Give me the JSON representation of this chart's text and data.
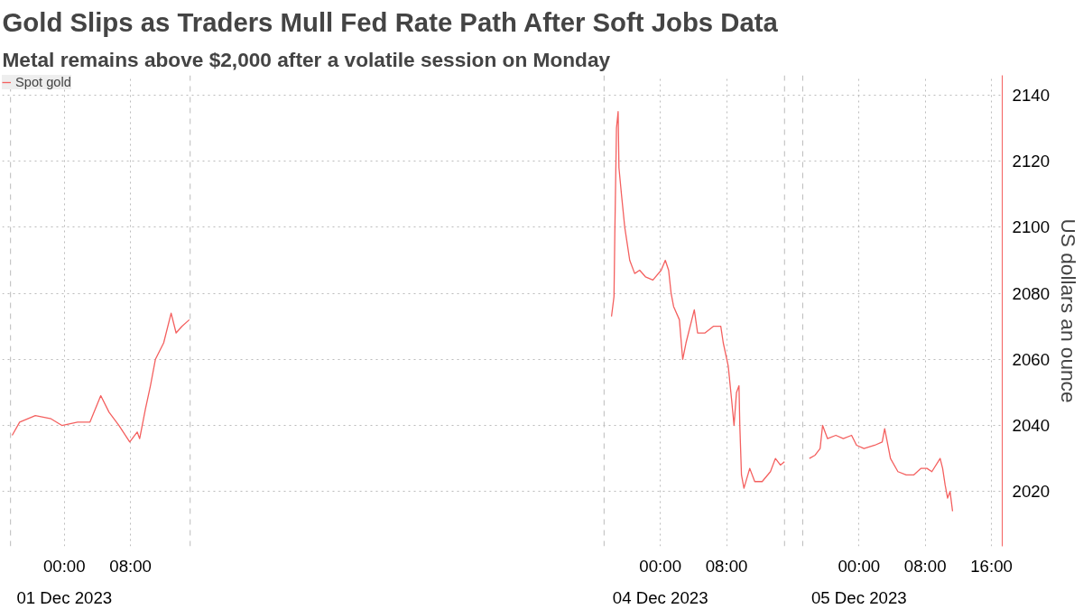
{
  "chart_data": {
    "type": "line",
    "title": "Gold Slips as Traders Mull Fed Rate Path After Soft Jobs Data",
    "subtitle": "Metal remains above $2,000 after a volatile session on Monday",
    "ylabel": "US dollars an ounce",
    "x": [
      "2023-11-30T17:42",
      "2023-11-30T18:36",
      "2023-11-30T20:30",
      "2023-11-30T22:24",
      "2023-11-30T23:42",
      "2023-12-01T01:36",
      "2023-12-01T03:06",
      "2023-12-01T04:24",
      "2023-12-01T05:24",
      "2023-12-01T06:36",
      "2023-12-01T07:54",
      "2023-12-01T08:48",
      "2023-12-01T09:06",
      "2023-12-01T09:48",
      "2023-12-01T10:24",
      "2023-12-01T11:00",
      "2023-12-01T12:00",
      "2023-12-01T12:54",
      "2023-12-01T13:30",
      "2023-12-01T14:12",
      "2023-12-01T15:06",
      "2023-12-02T16:00",
      "2023-12-03T18:06",
      "2023-12-03T18:24",
      "2023-12-03T18:30",
      "2023-12-03T18:42",
      "2023-12-03T18:54",
      "2023-12-03T19:00",
      "2023-12-03T19:18",
      "2023-12-03T19:42",
      "2023-12-03T20:00",
      "2023-12-03T20:18",
      "2023-12-03T20:54",
      "2023-12-03T21:30",
      "2023-12-03T22:12",
      "2023-12-03T23:06",
      "2023-12-04T00:06",
      "2023-12-04T00:36",
      "2023-12-04T01:00",
      "2023-12-04T01:18",
      "2023-12-04T01:36",
      "2023-12-04T02:18",
      "2023-12-04T02:42",
      "2023-12-04T03:06",
      "2023-12-04T03:48",
      "2023-12-04T04:06",
      "2023-12-04T04:30",
      "2023-12-04T05:24",
      "2023-12-04T06:24",
      "2023-12-04T07:18",
      "2023-12-04T07:36",
      "2023-12-04T08:12",
      "2023-12-04T08:36",
      "2023-12-04T08:54",
      "2023-12-04T09:12",
      "2023-12-04T09:30",
      "2023-12-04T09:36",
      "2023-12-04T09:48",
      "2023-12-04T10:06",
      "2023-12-04T10:48",
      "2023-12-04T11:24",
      "2023-12-04T12:18",
      "2023-12-04T13:18",
      "2023-12-04T13:54",
      "2023-12-04T14:30",
      "2023-12-04T15:00",
      "2023-12-04T16:00",
      "2023-12-04T18:00",
      "2023-12-04T18:42",
      "2023-12-04T19:18",
      "2023-12-04T19:36",
      "2023-12-04T20:12",
      "2023-12-04T21:12",
      "2023-12-04T22:06",
      "2023-12-04T23:06",
      "2023-12-04T23:42",
      "2023-12-05T00:36",
      "2023-12-05T01:54",
      "2023-12-05T02:48",
      "2023-12-05T03:06",
      "2023-12-05T03:48",
      "2023-12-05T04:42",
      "2023-12-05T05:42",
      "2023-12-05T06:36",
      "2023-12-05T07:30",
      "2023-12-05T08:12",
      "2023-12-05T08:48",
      "2023-12-05T09:48",
      "2023-12-05T10:06",
      "2023-12-05T10:24",
      "2023-12-05T10:42",
      "2023-12-05T11:00",
      "2023-12-05T11:18"
    ],
    "series": [
      {
        "name": "Spot gold",
        "color": "#f4605f",
        "values": [
          2037,
          2041,
          2043,
          2042,
          2040,
          2041,
          2041,
          2049,
          2044,
          2040,
          2035,
          2038,
          2036,
          2045,
          2052,
          2060,
          2065,
          2074,
          2068,
          2070,
          2072,
          null,
          2073,
          2079,
          2098,
          2130,
          2135,
          2118,
          2110,
          2100,
          2095,
          2090,
          2086,
          2087,
          2085,
          2084,
          2087,
          2090,
          2087,
          2080,
          2076,
          2072,
          2060,
          2065,
          2072,
          2075,
          2068,
          2068,
          2070,
          2070,
          2065,
          2058,
          2048,
          2040,
          2050,
          2052,
          2040,
          2025,
          2021,
          2027,
          2023,
          2023,
          2026,
          2030,
          2028,
          2029,
          null,
          2030,
          2031,
          2033,
          2040,
          2036,
          2037,
          2036,
          2037,
          2034,
          2033,
          2034,
          2035,
          2039,
          2030,
          2026,
          2025,
          2025,
          2027,
          2027,
          2026,
          2030,
          2027,
          2022,
          2018,
          2020,
          2014
        ]
      }
    ],
    "xlim": [
      "2023-11-30T16:30",
      "2023-12-05T17:18"
    ],
    "ylim": [
      2003.4,
      2146
    ],
    "xticks": [
      {
        "value": "2023-12-01T00:00",
        "label": "00:00"
      },
      {
        "value": "2023-12-01T08:00",
        "label": "08:00"
      },
      {
        "value": "2023-12-04T00:00",
        "label": "00:00"
      },
      {
        "value": "2023-12-04T08:00",
        "label": "08:00"
      },
      {
        "value": "2023-12-05T00:00",
        "label": "00:00"
      },
      {
        "value": "2023-12-05T08:00",
        "label": "08:00"
      },
      {
        "value": "2023-12-05T16:00",
        "label": "16:00"
      }
    ],
    "x2lim": [
      "2023-11-30T16:30",
      "2023-12-05T17:18"
    ],
    "x2ticks": [
      {
        "value": "2023-12-01",
        "label": "01 Dec 2023"
      },
      {
        "value": "2023-12-04",
        "label": "04 Dec 2023"
      },
      {
        "value": "2023-12-05",
        "label": "05 Dec 2023"
      }
    ],
    "yticks": [
      2020,
      2040,
      2060,
      2080,
      2100,
      2120,
      2140
    ],
    "ref_lines": [
      {
        "axis": "x",
        "value": "2023-11-30T17:30",
        "line_style": "dashed",
        "color": "#bbbbbb"
      },
      {
        "axis": "x",
        "value": "2023-12-01T15:12",
        "line_style": "dashed",
        "color": "#bbbbbb"
      },
      {
        "axis": "x",
        "value": "2023-12-03T17:12",
        "line_style": "dashed",
        "color": "#bbbbbb"
      },
      {
        "axis": "x",
        "value": "2023-12-04T15:00",
        "line_style": "dashed",
        "color": "#bbbbbb"
      },
      {
        "axis": "x",
        "value": "2023-12-04T17:12",
        "line_style": "dashed",
        "color": "#bbbbbb"
      }
    ],
    "grid": true,
    "legend": "top left",
    "line_style": "solid"
  }
}
